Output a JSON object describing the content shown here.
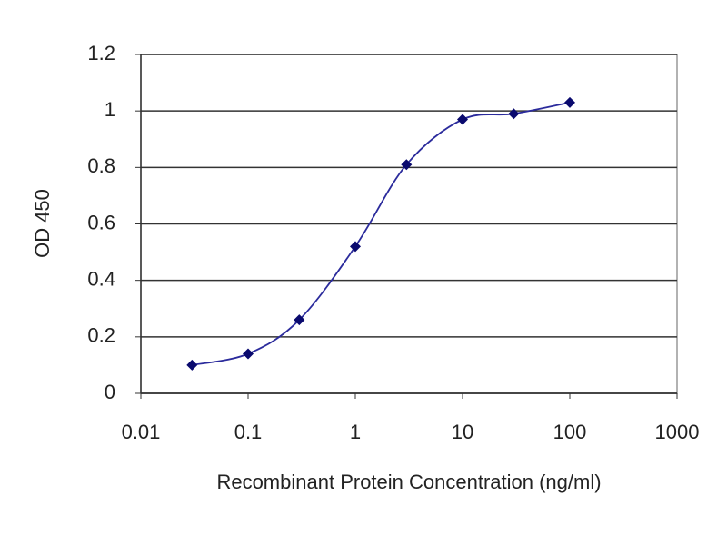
{
  "chart_data": {
    "type": "line",
    "x_label": "Recombinant Protein Concentration (ng/ml)",
    "y_label": "OD 450",
    "x": [
      0.03,
      0.1,
      0.3,
      1,
      3,
      10,
      30,
      100
    ],
    "series": [
      {
        "name": "OD 450",
        "color": "#2b2b9c",
        "marker_color": "#0a0a6e",
        "values": [
          0.1,
          0.14,
          0.26,
          0.52,
          0.81,
          0.97,
          0.99,
          1.03
        ]
      }
    ],
    "xscale": "log",
    "xlim": [
      0.01,
      1000
    ],
    "xticks": [
      0.01,
      0.1,
      1,
      10,
      100,
      1000
    ],
    "ylim": [
      0,
      1.2
    ],
    "yticks": [
      0,
      0.2,
      0.4,
      0.6,
      0.8,
      1,
      1.2
    ],
    "grid": true
  }
}
